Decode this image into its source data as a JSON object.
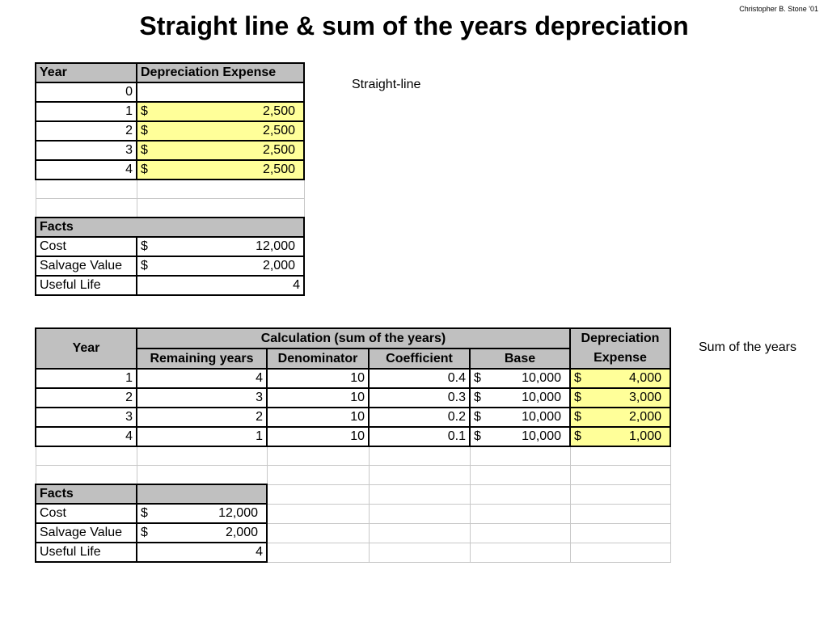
{
  "author": "Christopher B. Stone '01",
  "title": "Straight line & sum of the years depreciation",
  "sl_label": "Straight-line",
  "syd_label": "Sum of the years",
  "sl": {
    "h_year": "Year",
    "h_dep": "Depreciation Expense",
    "rows": [
      {
        "year": "0",
        "cur": "",
        "dep": ""
      },
      {
        "year": "1",
        "cur": "$",
        "dep": "2,500"
      },
      {
        "year": "2",
        "cur": "$",
        "dep": "2,500"
      },
      {
        "year": "3",
        "cur": "$",
        "dep": "2,500"
      },
      {
        "year": "4",
        "cur": "$",
        "dep": "2,500"
      }
    ],
    "facts_title": "Facts",
    "facts": [
      {
        "label": "Cost",
        "cur": "$",
        "value": "12,000"
      },
      {
        "label": "Salvage Value",
        "cur": "$",
        "value": "2,000"
      },
      {
        "label": "Useful Life",
        "cur": "",
        "value": "4"
      }
    ]
  },
  "syd": {
    "h_year": "Year",
    "h_calc": "Calculation (sum of the years)",
    "h_dep1": "Depreciation",
    "h_dep2": "Expense",
    "h_rem": "Remaining years",
    "h_den": "Denominator",
    "h_coef": "Coefficient",
    "h_base": "Base",
    "rows": [
      {
        "year": "1",
        "rem": "4",
        "den": "10",
        "coef": "0.4",
        "base_cur": "$",
        "base": "10,000",
        "dep_cur": "$",
        "dep": "4,000"
      },
      {
        "year": "2",
        "rem": "3",
        "den": "10",
        "coef": "0.3",
        "base_cur": "$",
        "base": "10,000",
        "dep_cur": "$",
        "dep": "3,000"
      },
      {
        "year": "3",
        "rem": "2",
        "den": "10",
        "coef": "0.2",
        "base_cur": "$",
        "base": "10,000",
        "dep_cur": "$",
        "dep": "2,000"
      },
      {
        "year": "4",
        "rem": "1",
        "den": "10",
        "coef": "0.1",
        "base_cur": "$",
        "base": "10,000",
        "dep_cur": "$",
        "dep": "1,000"
      }
    ],
    "facts_title": "Facts",
    "facts": [
      {
        "label": "Cost",
        "cur": "$",
        "value": "12,000"
      },
      {
        "label": "Salvage Value",
        "cur": "$",
        "value": "2,000"
      },
      {
        "label": "Useful Life",
        "cur": "",
        "value": "4"
      }
    ]
  },
  "colors": {
    "header_bg": "#c0c0c0",
    "highlight": "#ffff99"
  }
}
